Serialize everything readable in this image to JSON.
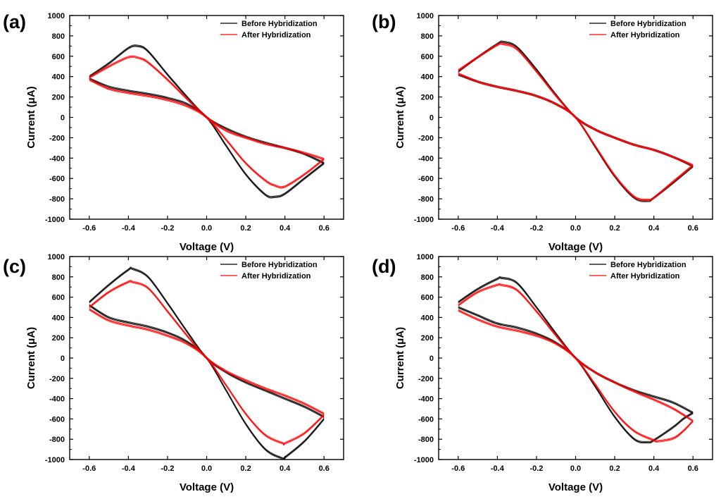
{
  "chart_data": [
    {
      "panel": "(a)",
      "type": "line",
      "xlabel": "Voltage (V)",
      "ylabel": "Current (μA)",
      "xlim": [
        -0.7,
        0.7
      ],
      "ylim": [
        -1000,
        1000
      ],
      "xticks": [
        -0.6,
        -0.4,
        -0.2,
        0.0,
        0.2,
        0.4,
        0.6
      ],
      "xtick_labels": [
        "-0.6",
        "-0.4",
        "-0.2",
        "0.0",
        "0.2",
        "0.4",
        "0.6"
      ],
      "yticks": [
        -1000,
        -800,
        -600,
        -400,
        -200,
        0,
        200,
        400,
        600,
        800,
        1000
      ],
      "ytick_labels": [
        "-1000",
        "-800",
        "-600",
        "-400",
        "-200",
        "0",
        "200",
        "400",
        "600",
        "800",
        "1000"
      ],
      "legend": "top-right",
      "series": [
        {
          "name": "Before Hybridization",
          "color": "#000000",
          "forward": {
            "x": [
              -0.6,
              -0.5,
              -0.4,
              -0.35,
              -0.3,
              -0.2,
              -0.1,
              0.0,
              0.1,
              0.2,
              0.3,
              0.4,
              0.5,
              0.6
            ],
            "y": [
              400,
              530,
              680,
              700,
              650,
              420,
              200,
              0,
              -110,
              -190,
              -250,
              -300,
              -360,
              -450
            ]
          },
          "reverse": {
            "x": [
              0.6,
              0.5,
              0.4,
              0.35,
              0.3,
              0.2,
              0.1,
              0.0,
              -0.1,
              -0.2,
              -0.3,
              -0.4,
              -0.5,
              -0.6
            ],
            "y": [
              -450,
              -600,
              -750,
              -780,
              -760,
              -560,
              -280,
              0,
              130,
              190,
              230,
              260,
              300,
              380
            ]
          }
        },
        {
          "name": "After Hybridization",
          "color": "#ff0000",
          "forward": {
            "x": [
              -0.6,
              -0.5,
              -0.4,
              -0.35,
              -0.3,
              -0.2,
              -0.1,
              0.0,
              0.1,
              0.2,
              0.3,
              0.4,
              0.5,
              0.6
            ],
            "y": [
              390,
              500,
              590,
              585,
              540,
              370,
              180,
              0,
              -130,
              -200,
              -260,
              -300,
              -350,
              -410
            ]
          },
          "reverse": {
            "x": [
              0.6,
              0.5,
              0.4,
              0.35,
              0.3,
              0.2,
              0.1,
              0.0,
              -0.1,
              -0.2,
              -0.3,
              -0.4,
              -0.5,
              -0.6
            ],
            "y": [
              -410,
              -560,
              -680,
              -670,
              -620,
              -450,
              -220,
              0,
              110,
              170,
              210,
              240,
              280,
              370
            ]
          }
        }
      ]
    },
    {
      "panel": "(b)",
      "type": "line",
      "xlabel": "Voltage (V)",
      "ylabel": "Current (μA)",
      "xlim": [
        -0.7,
        0.7
      ],
      "ylim": [
        -1000,
        1000
      ],
      "xticks": [
        -0.6,
        -0.4,
        -0.2,
        0.0,
        0.2,
        0.4,
        0.6
      ],
      "xtick_labels": [
        "-0.6",
        "-0.4",
        "-0.2",
        "0.0",
        "0.2",
        "0.4",
        "0.6"
      ],
      "yticks": [
        -1000,
        -800,
        -600,
        -400,
        -200,
        0,
        200,
        400,
        600,
        800,
        1000
      ],
      "ytick_labels": [
        "-1000",
        "-800",
        "-600",
        "-400",
        "-200",
        "0",
        "200",
        "400",
        "600",
        "800",
        "1000"
      ],
      "legend": "top-right",
      "series": [
        {
          "name": "Before Hybridization",
          "color": "#000000",
          "forward": {
            "x": [
              -0.6,
              -0.5,
              -0.4,
              -0.37,
              -0.3,
              -0.2,
              -0.1,
              0.0,
              0.1,
              0.2,
              0.3,
              0.4,
              0.5,
              0.6
            ],
            "y": [
              450,
              590,
              720,
              740,
              690,
              470,
              220,
              0,
              -120,
              -200,
              -270,
              -320,
              -390,
              -480
            ]
          },
          "reverse": {
            "x": [
              0.6,
              0.5,
              0.4,
              0.37,
              0.3,
              0.2,
              0.1,
              0.0,
              -0.1,
              -0.2,
              -0.3,
              -0.4,
              -0.5,
              -0.6
            ],
            "y": [
              -480,
              -640,
              -790,
              -820,
              -790,
              -580,
              -290,
              0,
              130,
              210,
              260,
              300,
              350,
              420
            ]
          }
        },
        {
          "name": "After Hybridization",
          "color": "#ff0000",
          "forward": {
            "x": [
              -0.6,
              -0.5,
              -0.4,
              -0.37,
              -0.3,
              -0.2,
              -0.1,
              0.0,
              0.1,
              0.2,
              0.3,
              0.4,
              0.5,
              0.6
            ],
            "y": [
              460,
              590,
              710,
              720,
              670,
              450,
              210,
              0,
              -120,
              -200,
              -270,
              -320,
              -390,
              -470
            ]
          },
          "reverse": {
            "x": [
              0.6,
              0.5,
              0.4,
              0.37,
              0.3,
              0.2,
              0.1,
              0.0,
              -0.1,
              -0.2,
              -0.3,
              -0.4,
              -0.5,
              -0.6
            ],
            "y": [
              -470,
              -630,
              -790,
              -810,
              -780,
              -570,
              -280,
              0,
              130,
              210,
              260,
              300,
              350,
              430
            ]
          }
        }
      ]
    },
    {
      "panel": "(c)",
      "type": "line",
      "xlabel": "Voltage (V)",
      "ylabel": "Current (μA)",
      "xlim": [
        -0.7,
        0.7
      ],
      "ylim": [
        -1000,
        1000
      ],
      "xticks": [
        -0.6,
        -0.4,
        -0.2,
        0.0,
        0.2,
        0.4,
        0.6
      ],
      "xtick_labels": [
        "-0.6",
        "-0.4",
        "-0.2",
        "0.0",
        "0.2",
        "0.4",
        "0.6"
      ],
      "yticks": [
        -1000,
        -800,
        -600,
        -400,
        -200,
        0,
        200,
        400,
        600,
        800,
        1000
      ],
      "ytick_labels": [
        "-1000",
        "-800",
        "-600",
        "-400",
        "-200",
        "0",
        "200",
        "400",
        "600",
        "800",
        "1000"
      ],
      "legend": "top-right",
      "series": [
        {
          "name": "Before Hybridization",
          "color": "#000000",
          "forward": {
            "x": [
              -0.6,
              -0.5,
              -0.4,
              -0.38,
              -0.3,
              -0.2,
              -0.1,
              0.0,
              0.1,
              0.2,
              0.3,
              0.4,
              0.5,
              0.6
            ],
            "y": [
              550,
              720,
              870,
              880,
              800,
              540,
              260,
              0,
              -140,
              -240,
              -320,
              -400,
              -480,
              -580
            ]
          },
          "reverse": {
            "x": [
              0.6,
              0.5,
              0.4,
              0.39,
              0.3,
              0.2,
              0.1,
              0.0,
              -0.1,
              -0.2,
              -0.3,
              -0.4,
              -0.5,
              -0.6
            ],
            "y": [
              -600,
              -820,
              -980,
              -990,
              -900,
              -650,
              -320,
              0,
              160,
              250,
              310,
              350,
              400,
              520
            ]
          }
        },
        {
          "name": "After Hybridization",
          "color": "#ff0000",
          "forward": {
            "x": [
              -0.6,
              -0.5,
              -0.4,
              -0.38,
              -0.3,
              -0.2,
              -0.1,
              0.0,
              0.1,
              0.2,
              0.3,
              0.4,
              0.5,
              0.6
            ],
            "y": [
              500,
              650,
              750,
              750,
              690,
              460,
              220,
              0,
              -130,
              -220,
              -300,
              -370,
              -450,
              -550
            ]
          },
          "reverse": {
            "x": [
              0.6,
              0.5,
              0.4,
              0.39,
              0.3,
              0.2,
              0.1,
              0.0,
              -0.1,
              -0.2,
              -0.3,
              -0.4,
              -0.5,
              -0.6
            ],
            "y": [
              -560,
              -740,
              -840,
              -840,
              -760,
              -550,
              -270,
              0,
              140,
              220,
              280,
              320,
              370,
              480
            ]
          }
        }
      ]
    },
    {
      "panel": "(d)",
      "type": "line",
      "xlabel": "Voltage (V)",
      "ylabel": "Current (μA)",
      "xlim": [
        -0.7,
        0.7
      ],
      "ylim": [
        -1000,
        1000
      ],
      "xticks": [
        -0.6,
        -0.4,
        -0.2,
        0.0,
        0.2,
        0.4,
        0.6
      ],
      "xtick_labels": [
        "-0.6",
        "-0.4",
        "-0.2",
        "0.0",
        "0.2",
        "0.4",
        "0.6"
      ],
      "yticks": [
        -1000,
        -800,
        -600,
        -400,
        -200,
        0,
        200,
        400,
        600,
        800,
        1000
      ],
      "ytick_labels": [
        "-1000",
        "-800",
        "-600",
        "-400",
        "-200",
        "0",
        "200",
        "400",
        "600",
        "800",
        "1000"
      ],
      "legend": "top-right",
      "series": [
        {
          "name": "Before Hybridization",
          "color": "#000000",
          "forward": {
            "x": [
              -0.6,
              -0.5,
              -0.4,
              -0.38,
              -0.3,
              -0.2,
              -0.1,
              0.0,
              0.1,
              0.2,
              0.3,
              0.4,
              0.5,
              0.6
            ],
            "y": [
              550,
              680,
              780,
              790,
              740,
              500,
              240,
              0,
              -140,
              -240,
              -320,
              -380,
              -440,
              -540
            ]
          },
          "reverse": {
            "x": [
              0.6,
              0.55,
              0.5,
              0.4,
              0.37,
              0.3,
              0.2,
              0.1,
              0.0,
              -0.1,
              -0.2,
              -0.3,
              -0.4,
              -0.5,
              -0.6
            ],
            "y": [
              -540,
              -600,
              -680,
              -810,
              -830,
              -800,
              -580,
              -280,
              0,
              150,
              240,
              300,
              340,
              420,
              500
            ]
          }
        },
        {
          "name": "After Hybridization",
          "color": "#ff0000",
          "forward": {
            "x": [
              -0.6,
              -0.5,
              -0.4,
              -0.38,
              -0.3,
              -0.2,
              -0.1,
              0.0,
              0.1,
              0.2,
              0.3,
              0.4,
              0.5,
              0.6
            ],
            "y": [
              520,
              650,
              720,
              720,
              670,
              460,
              220,
              0,
              -140,
              -240,
              -330,
              -410,
              -500,
              -620
            ]
          },
          "reverse": {
            "x": [
              0.6,
              0.55,
              0.5,
              0.42,
              0.4,
              0.3,
              0.2,
              0.1,
              0.0,
              -0.1,
              -0.2,
              -0.3,
              -0.4,
              -0.5,
              -0.6
            ],
            "y": [
              -620,
              -720,
              -790,
              -820,
              -810,
              -720,
              -530,
              -260,
              0,
              140,
              220,
              270,
              310,
              380,
              470
            ]
          }
        }
      ]
    }
  ]
}
